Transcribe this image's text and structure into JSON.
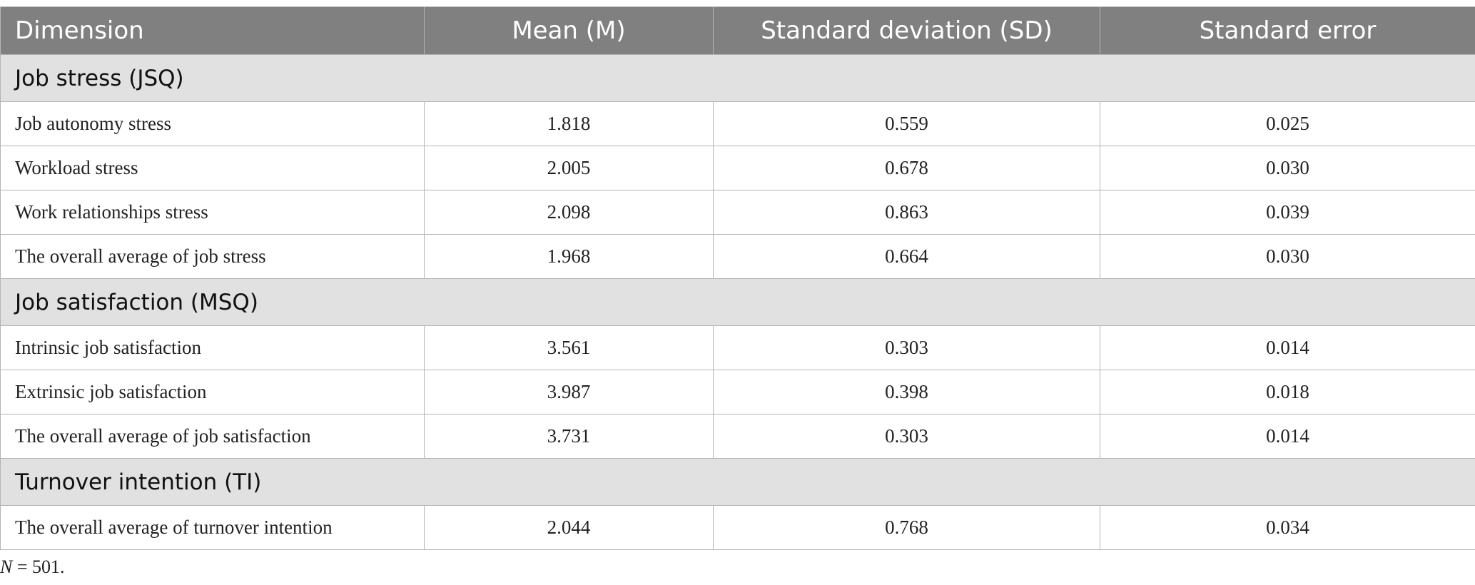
{
  "table": {
    "header": [
      "Dimension",
      "Mean (M)",
      "Standard deviation (SD)",
      "Standard error"
    ],
    "sections": [
      {
        "title": "Job stress (JSQ)",
        "rows": [
          [
            "Job autonomy stress",
            "1.818",
            "0.559",
            "0.025"
          ],
          [
            "Workload stress",
            "2.005",
            "0.678",
            "0.030"
          ],
          [
            "Work relationships stress",
            "2.098",
            "0.863",
            "0.039"
          ],
          [
            "The overall average of job stress",
            "1.968",
            "0.664",
            "0.030"
          ]
        ]
      },
      {
        "title": "Job satisfaction (MSQ)",
        "rows": [
          [
            "Intrinsic job satisfaction",
            "3.561",
            "0.303",
            "0.014"
          ],
          [
            "Extrinsic job satisfaction",
            "3.987",
            "0.398",
            "0.018"
          ],
          [
            "The overall average of job satisfaction",
            "3.731",
            "0.303",
            "0.014"
          ]
        ]
      },
      {
        "title": "Turnover intention (TI)",
        "rows": [
          [
            "The overall average of turnover intention",
            "2.044",
            "0.768",
            "0.034"
          ]
        ]
      }
    ]
  },
  "footnote": {
    "symbol": "N",
    "text": "= 501."
  }
}
